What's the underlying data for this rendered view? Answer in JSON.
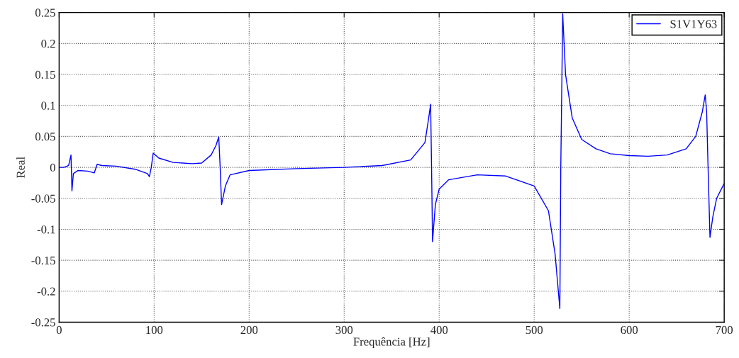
{
  "chart_data": {
    "type": "line",
    "xlabel": "Frequência [Hz]",
    "ylabel": "Real",
    "x": [
      0,
      5,
      10,
      12.5,
      13.5,
      15,
      20,
      30,
      37,
      40,
      45,
      60,
      80,
      93,
      95,
      97,
      99,
      105,
      120,
      140,
      150,
      160,
      165,
      168,
      169.5,
      171,
      175,
      180,
      200,
      250,
      300,
      340,
      370,
      385,
      389,
      391,
      392,
      393,
      396,
      400,
      410,
      440,
      470,
      500,
      515,
      522,
      527,
      528,
      530,
      533,
      540,
      550,
      565,
      580,
      600,
      620,
      640,
      660,
      670,
      677,
      680,
      681.5,
      683,
      685,
      688,
      692,
      697,
      700
    ],
    "series": [
      {
        "name": "S1V1Y63",
        "color": "#0000ff",
        "values": [
          0,
          0,
          0.003,
          0.02,
          -0.038,
          -0.01,
          -0.005,
          -0.006,
          -0.009,
          0.005,
          0.003,
          0.002,
          -0.003,
          -0.01,
          -0.015,
          0,
          0.023,
          0.015,
          0.008,
          0.006,
          0.007,
          0.02,
          0.035,
          0.049,
          0,
          -0.06,
          -0.03,
          -0.012,
          -0.005,
          -0.002,
          0,
          0.003,
          0.012,
          0.04,
          0.08,
          0.102,
          0,
          -0.12,
          -0.06,
          -0.035,
          -0.02,
          -0.012,
          -0.014,
          -0.03,
          -0.07,
          -0.14,
          -0.228,
          0,
          0.248,
          0.15,
          0.08,
          0.045,
          0.03,
          0.022,
          0.019,
          0.018,
          0.02,
          0.03,
          0.05,
          0.09,
          0.117,
          0.09,
          0,
          -0.113,
          -0.08,
          -0.05,
          -0.035,
          -0.026
        ]
      }
    ],
    "xlim": [
      0,
      700
    ],
    "xticks": [
      0,
      100,
      200,
      300,
      400,
      500,
      600,
      700
    ],
    "ylim": [
      -0.25,
      0.25
    ],
    "yticks": [
      {
        "value": -0.25,
        "label": "-0.25"
      },
      {
        "value": -0.2,
        "label": "-0.2"
      },
      {
        "value": -0.15,
        "label": "-0.15"
      },
      {
        "value": -0.1,
        "label": "-0.1"
      },
      {
        "value": -0.05,
        "label": "-0.05"
      },
      0,
      0.05,
      0.1,
      0.15,
      0.2,
      0.25
    ],
    "grid": true,
    "legend": "top right",
    "marker": "none",
    "line_style": "solid"
  }
}
